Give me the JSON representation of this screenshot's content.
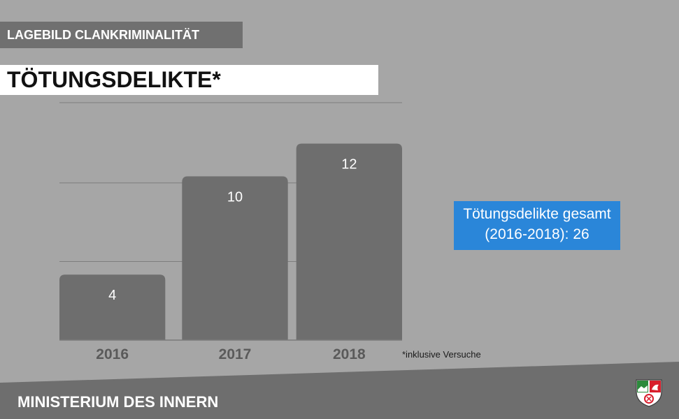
{
  "header": {
    "kicker": "LAGEBILD CLANKRIMINALITÄT",
    "title": "TÖTUNGSDELIKTE*"
  },
  "chart_data": {
    "type": "bar",
    "categories": [
      "2016",
      "2017",
      "2018"
    ],
    "values": [
      4,
      10,
      12
    ],
    "data_labels": [
      "4",
      "10",
      "12"
    ],
    "ylim": [
      0,
      14.5
    ],
    "grid": true,
    "colors": {
      "bar": "#6e6e6e",
      "grid": "#7d7d7d",
      "background": "#a6a6a6"
    }
  },
  "footnote": "*inklusive Versuche",
  "summary": {
    "line1": "Tötungsdelikte gesamt",
    "line2": "(2016-2018): 26",
    "color": "#2a86d9"
  },
  "footer": {
    "ministry": "MINISTERIUM DES INNERN",
    "crest_icon": "nrw-coat-of-arms-icon",
    "color": "#6e6e6e"
  }
}
